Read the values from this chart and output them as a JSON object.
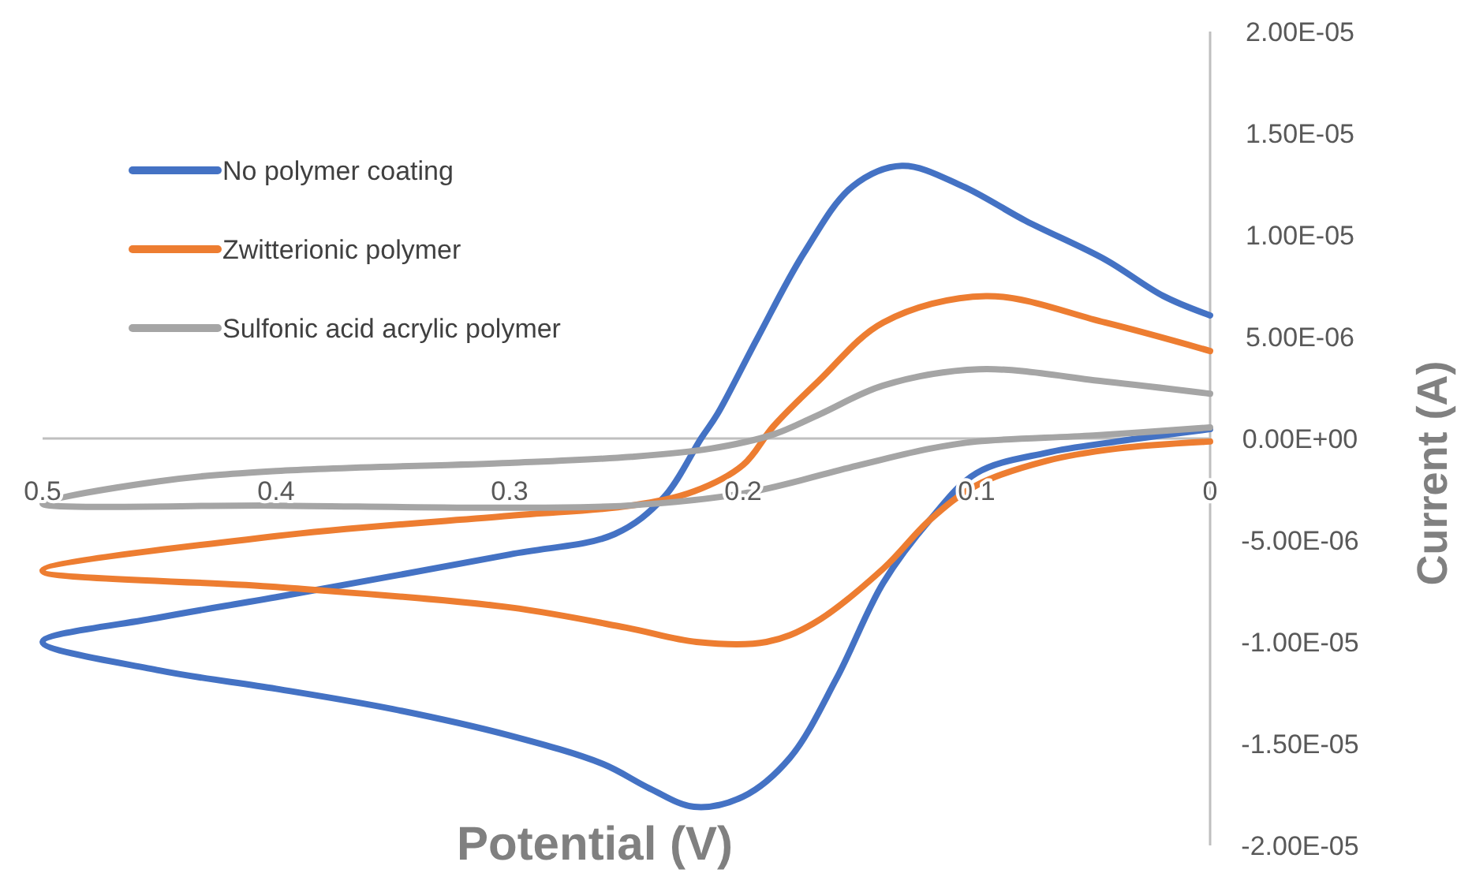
{
  "chart_data": {
    "type": "line",
    "xlabel": "Potential (V)",
    "ylabel": "Current (A)",
    "xlim": [
      0.5,
      0
    ],
    "xticks": [
      0.5,
      0.4,
      0.3,
      0.2,
      0.1,
      0
    ],
    "ylim": [
      -2e-05,
      2e-05
    ],
    "yticks": [
      {
        "value": 2e-05,
        "label": "2.00E-05"
      },
      {
        "value": 1.5e-05,
        "label": "1.50E-05"
      },
      {
        "value": 1e-05,
        "label": "1.00E-05"
      },
      {
        "value": 5e-06,
        "label": "5.00E-06"
      },
      {
        "value": 0,
        "label": "0.00E+00"
      },
      {
        "value": -5e-06,
        "label": "-5.00E-06"
      },
      {
        "value": -1e-05,
        "label": "-1.00E-05"
      },
      {
        "value": -1.5e-05,
        "label": "-1.50E-05"
      },
      {
        "value": -2e-05,
        "label": "-2.00E-05"
      }
    ],
    "grid": false,
    "legend": "top left",
    "marker": "none",
    "line_style": "solid",
    "series": [
      {
        "name": "No polymer coating",
        "color": "#4472c4",
        "x": [
          0,
          0.02,
          0.045,
          0.079,
          0.106,
          0.132,
          0.153,
          0.174,
          0.194,
          0.211,
          0.218,
          0.234,
          0.255,
          0.3,
          0.4,
          0.45,
          0.5,
          0.45,
          0.4,
          0.35,
          0.3,
          0.26,
          0.24,
          0.221,
          0.2,
          0.18,
          0.16,
          0.14,
          0.12,
          0.1,
          0.07,
          0.04,
          0
        ],
        "values": [
          6.05e-06,
          7e-06,
          8.8e-06,
          1.07e-05,
          1.24e-05,
          1.34e-05,
          1.24e-05,
          9.1e-06,
          4.9e-06,
          1.2e-06,
          0,
          -2.9e-06,
          -4.7e-06,
          -5.7e-06,
          -7.8e-06,
          -8.8e-06,
          -1e-05,
          -1.14e-05,
          -1.23e-05,
          -1.33e-05,
          -1.46e-05,
          -1.6e-05,
          -1.72e-05,
          -1.81e-05,
          -1.76e-05,
          -1.57e-05,
          -1.18e-05,
          -7.1e-06,
          -4e-06,
          -1.7e-06,
          -7e-07,
          -1.5e-07,
          4.6e-07
        ]
      },
      {
        "name": "Zwitterionic polymer",
        "color": "#ed7d31",
        "x": [
          0,
          0.045,
          0.096,
          0.14,
          0.167,
          0.187,
          0.2,
          0.221,
          0.248,
          0.3,
          0.4,
          0.5,
          0.4,
          0.3,
          0.25,
          0.22,
          0.19,
          0.17,
          0.14,
          0.12,
          0.1,
          0.07,
          0.04,
          0
        ],
        "values": [
          4.3e-06,
          5.7e-06,
          7e-06,
          5.7e-06,
          2.9e-06,
          6e-07,
          -1.3e-06,
          -2.6e-06,
          -3.3e-06,
          -3.8e-06,
          -4.8e-06,
          -6.5e-06,
          -7.3e-06,
          -8.3e-06,
          -9.3e-06,
          -1e-05,
          -1e-05,
          -9.1e-06,
          -6.4e-06,
          -4e-06,
          -2.3e-06,
          -1.1e-06,
          -5e-07,
          -1.5e-07
        ]
      },
      {
        "name": "Sulfonic acid acrylic polymer",
        "color": "#a5a5a5",
        "x": [
          0,
          0.045,
          0.099,
          0.14,
          0.167,
          0.187,
          0.214,
          0.248,
          0.3,
          0.4,
          0.45,
          0.5,
          0.4,
          0.3,
          0.25,
          0.2,
          0.15,
          0.12,
          0.1,
          0.05,
          0
        ],
        "values": [
          2.2e-06,
          2.8e-06,
          3.4e-06,
          2.6e-06,
          1.2e-06,
          2e-07,
          -5e-07,
          -9e-07,
          -1.2e-06,
          -1.6e-06,
          -2.1e-06,
          -3.2e-06,
          -3.3e-06,
          -3.4e-06,
          -3.3e-06,
          -2.7e-06,
          -1.3e-06,
          -5e-07,
          -1.5e-07,
          1.5e-07,
          5.4e-07
        ]
      }
    ]
  }
}
